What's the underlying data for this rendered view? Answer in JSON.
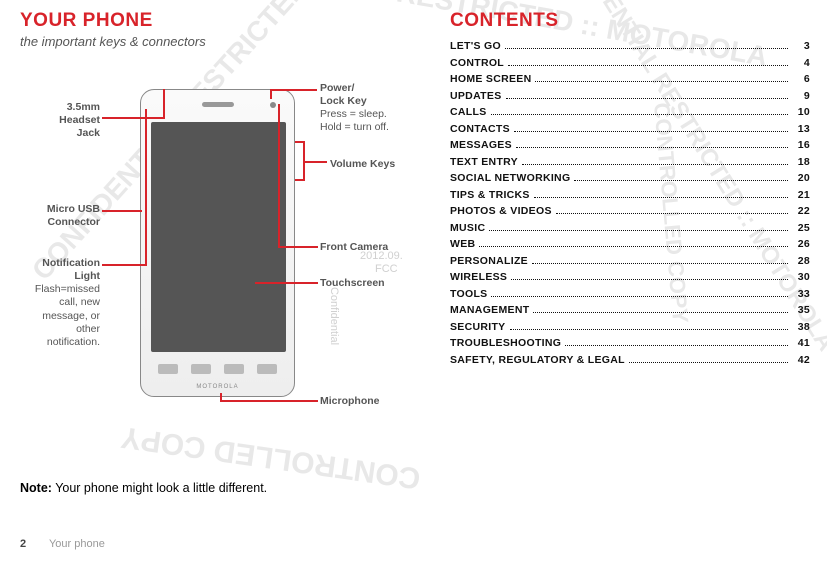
{
  "left": {
    "heading": "YOUR PHONE",
    "subtitle": "the important keys & connectors",
    "labels": {
      "headset_jack_1": "3.5mm",
      "headset_jack_2": "Headset",
      "headset_jack_3": "Jack",
      "usb_1": "Micro USB",
      "usb_2": "Connector",
      "notif_1": "Notification",
      "notif_2": "Light",
      "notif_sub_1": "Flash=missed",
      "notif_sub_2": "call, new",
      "notif_sub_3": "message, or",
      "notif_sub_4": "other",
      "notif_sub_5": "notification.",
      "power_1": "Power/",
      "power_2": "Lock Key",
      "power_sub_1": "Press = sleep.",
      "power_sub_2": "Hold = turn off.",
      "volume": "Volume Keys",
      "front_cam": "Front Camera",
      "touch": "Touchscreen",
      "mic": "Microphone"
    },
    "note_bold": "Note:",
    "note_text": " Your phone might look a little different."
  },
  "right": {
    "heading": "CONTENTS",
    "toc": [
      {
        "title": "LET'S GO",
        "page": "3"
      },
      {
        "title": "CONTROL",
        "page": "4"
      },
      {
        "title": "HOME SCREEN",
        "page": "6"
      },
      {
        "title": "UPDATES",
        "page": "9"
      },
      {
        "title": "CALLS",
        "page": "10"
      },
      {
        "title": "CONTACTS",
        "page": "13"
      },
      {
        "title": "MESSAGES",
        "page": "16"
      },
      {
        "title": "TEXT ENTRY",
        "page": "18"
      },
      {
        "title": "SOCIAL NETWORKING",
        "page": "20"
      },
      {
        "title": "TIPS & TRICKS",
        "page": "21"
      },
      {
        "title": "PHOTOS & VIDEOS",
        "page": "22"
      },
      {
        "title": "MUSIC",
        "page": "25"
      },
      {
        "title": "WEB",
        "page": "26"
      },
      {
        "title": "PERSONALIZE",
        "page": "28"
      },
      {
        "title": "WIRELESS",
        "page": "30"
      },
      {
        "title": "TOOLS",
        "page": "33"
      },
      {
        "title": "MANAGEMENT",
        "page": "35"
      },
      {
        "title": "SECURITY",
        "page": "38"
      },
      {
        "title": "TROUBLESHOOTING",
        "page": "41"
      },
      {
        "title": "SAFETY, REGULATORY & LEGAL",
        "page": "42"
      }
    ]
  },
  "footer": {
    "page_num": "2",
    "label": "Your phone"
  },
  "watermarks": {
    "wm1": "CONFIDENTIAL RESTRICTED :: MOTOROLA",
    "wm2": "CONTROLLED COPY",
    "wm3": "2012.09.",
    "wm4": "FCC",
    "wm5": "Confidential"
  },
  "colors": {
    "red": "#d8232a",
    "gray_text": "#555555",
    "light_wm": "#e8e8e8"
  }
}
